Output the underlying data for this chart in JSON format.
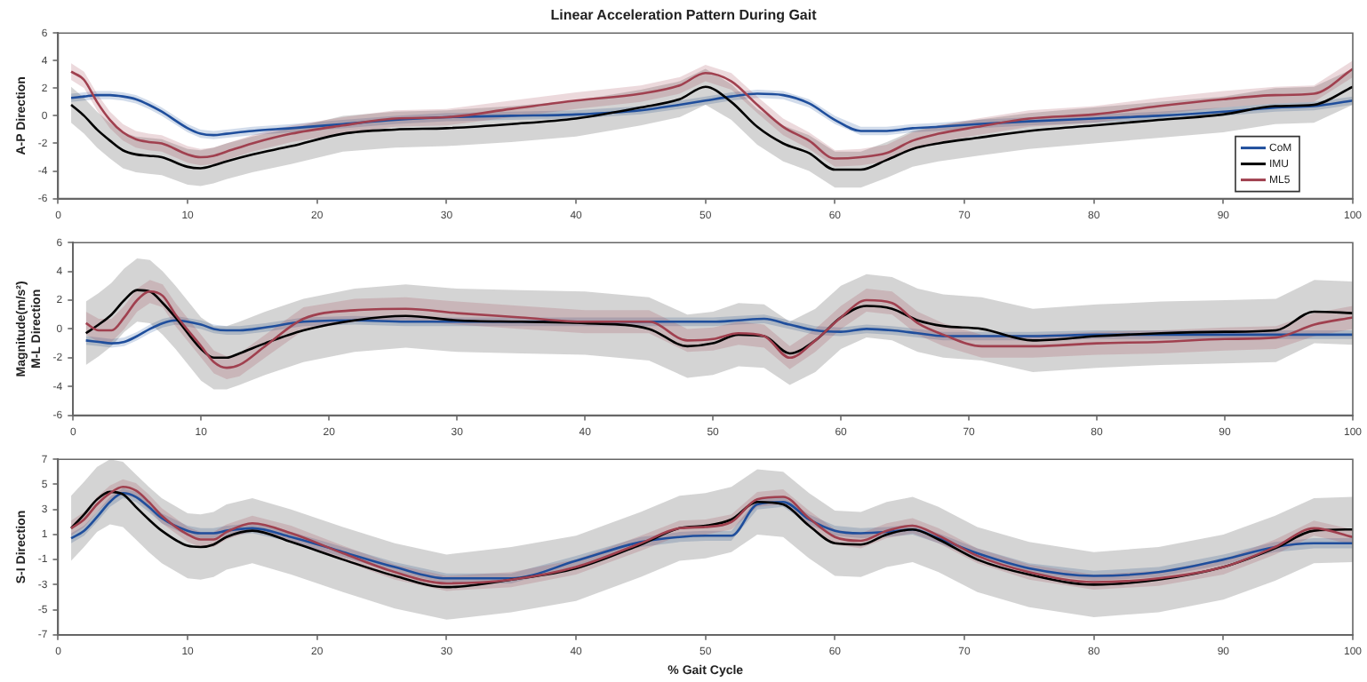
{
  "chart_data": [
    {
      "type": "line",
      "title": "Linear Acceleration Pattern During Gait",
      "ylabel": "A-P Direction",
      "x": [
        1,
        2,
        3,
        4,
        5,
        6,
        7,
        8,
        10,
        11,
        12,
        13,
        15,
        18,
        22,
        26,
        30,
        35,
        40,
        45,
        48,
        50,
        52,
        54,
        56,
        58,
        60,
        62,
        64,
        66,
        68,
        71,
        75,
        80,
        85,
        90,
        94,
        97,
        100
      ],
      "xlim": [
        0,
        100
      ],
      "xticks": [
        0,
        10,
        20,
        30,
        40,
        50,
        60,
        70,
        80,
        90,
        100
      ],
      "ylim": [
        -6,
        6
      ],
      "yticks": [
        -6,
        -4,
        -2,
        0,
        2,
        4,
        6
      ],
      "legend": "bottom right",
      "series": [
        {
          "name": "CoM",
          "color": "#1f4e9c",
          "values": [
            1.3,
            1.4,
            1.5,
            1.5,
            1.4,
            1.2,
            0.8,
            0.3,
            -0.9,
            -1.3,
            -1.4,
            -1.3,
            -1.1,
            -0.9,
            -0.6,
            -0.3,
            -0.1,
            0.0,
            0.1,
            0.4,
            0.8,
            1.1,
            1.4,
            1.6,
            1.5,
            0.9,
            -0.3,
            -1.1,
            -1.1,
            -0.9,
            -0.8,
            -0.6,
            -0.4,
            -0.2,
            0.0,
            0.3,
            0.6,
            0.7,
            1.1
          ],
          "lower": [
            1.0,
            1.1,
            1.2,
            1.2,
            1.1,
            0.9,
            0.5,
            0.0,
            -1.2,
            -1.6,
            -1.7,
            -1.6,
            -1.4,
            -1.2,
            -0.9,
            -0.6,
            -0.4,
            -0.3,
            -0.2,
            0.1,
            0.5,
            0.8,
            1.1,
            1.3,
            1.2,
            0.6,
            -0.6,
            -1.4,
            -1.4,
            -1.2,
            -1.1,
            -0.9,
            -0.7,
            -0.5,
            -0.3,
            0.0,
            0.3,
            0.4,
            0.8
          ],
          "upper": [
            1.6,
            1.7,
            1.8,
            1.8,
            1.7,
            1.5,
            1.1,
            0.6,
            -0.6,
            -1.0,
            -1.1,
            -1.0,
            -0.8,
            -0.6,
            -0.3,
            0.0,
            0.2,
            0.3,
            0.4,
            0.7,
            1.1,
            1.4,
            1.7,
            1.9,
            1.8,
            1.2,
            0.0,
            -0.8,
            -0.8,
            -0.6,
            -0.5,
            -0.3,
            -0.1,
            0.1,
            0.3,
            0.6,
            0.9,
            1.0,
            1.4
          ]
        },
        {
          "name": "IMU",
          "color": "#000000",
          "values": [
            0.8,
            0.0,
            -1.0,
            -1.8,
            -2.5,
            -2.8,
            -2.9,
            -3.0,
            -3.7,
            -3.8,
            -3.6,
            -3.3,
            -2.8,
            -2.2,
            -1.3,
            -1.0,
            -0.9,
            -0.6,
            -0.2,
            0.6,
            1.2,
            2.1,
            1.0,
            -0.8,
            -2.0,
            -2.7,
            -3.9,
            -3.9,
            -3.2,
            -2.4,
            -2.0,
            -1.6,
            -1.1,
            -0.7,
            -0.3,
            0.1,
            0.7,
            0.8,
            2.1
          ],
          "lower": [
            -0.5,
            -1.3,
            -2.3,
            -3.1,
            -3.8,
            -4.1,
            -4.2,
            -4.3,
            -5.0,
            -5.1,
            -4.9,
            -4.6,
            -4.1,
            -3.5,
            -2.6,
            -2.3,
            -2.2,
            -1.9,
            -1.5,
            -0.7,
            -0.1,
            0.8,
            -0.3,
            -2.1,
            -3.3,
            -4.0,
            -5.2,
            -5.2,
            -4.5,
            -3.7,
            -3.3,
            -2.9,
            -2.4,
            -2.0,
            -1.6,
            -1.2,
            -0.6,
            -0.5,
            0.8
          ],
          "upper": [
            2.1,
            1.3,
            0.3,
            -0.5,
            -1.2,
            -1.5,
            -1.6,
            -1.7,
            -2.4,
            -2.5,
            -2.3,
            -2.0,
            -1.5,
            -0.9,
            0.0,
            0.3,
            0.4,
            0.7,
            1.1,
            1.9,
            2.5,
            3.4,
            2.3,
            0.5,
            -0.7,
            -1.4,
            -2.6,
            -2.6,
            -1.9,
            -1.1,
            -0.7,
            -0.3,
            0.2,
            0.6,
            1.0,
            1.4,
            2.0,
            2.1,
            3.4
          ]
        },
        {
          "name": "ML5",
          "color": "#a0404f",
          "values": [
            3.2,
            2.6,
            1.0,
            -0.3,
            -1.2,
            -1.7,
            -1.9,
            -2.0,
            -2.8,
            -3.0,
            -2.9,
            -2.6,
            -2.0,
            -1.3,
            -0.7,
            -0.2,
            -0.1,
            0.5,
            1.1,
            1.6,
            2.2,
            3.1,
            2.5,
            0.8,
            -0.8,
            -1.8,
            -3.1,
            -3.0,
            -2.7,
            -1.8,
            -1.3,
            -0.8,
            -0.2,
            0.1,
            0.7,
            1.2,
            1.5,
            1.6,
            3.4
          ],
          "lower": [
            2.6,
            2.0,
            0.4,
            -0.9,
            -1.8,
            -2.3,
            -2.5,
            -2.6,
            -3.4,
            -3.6,
            -3.5,
            -3.2,
            -2.6,
            -1.9,
            -1.3,
            -0.8,
            -0.7,
            -0.1,
            0.5,
            1.0,
            1.6,
            2.5,
            1.9,
            0.2,
            -1.4,
            -2.4,
            -3.7,
            -3.6,
            -3.3,
            -2.4,
            -1.9,
            -1.4,
            -0.8,
            -0.5,
            0.1,
            0.6,
            0.9,
            1.0,
            2.8
          ],
          "upper": [
            3.8,
            3.2,
            1.6,
            0.3,
            -0.6,
            -1.1,
            -1.3,
            -1.4,
            -2.2,
            -2.4,
            -2.3,
            -2.0,
            -1.4,
            -0.7,
            -0.1,
            0.4,
            0.5,
            1.1,
            1.7,
            2.2,
            2.8,
            3.7,
            3.1,
            1.4,
            -0.2,
            -1.2,
            -2.5,
            -2.4,
            -2.1,
            -1.2,
            -0.7,
            -0.2,
            0.4,
            0.7,
            1.3,
            1.8,
            2.1,
            2.2,
            4.0
          ]
        }
      ]
    },
    {
      "type": "line",
      "ylabel": "Magnitude(m/s²)\nM-L Direction",
      "x": [
        1,
        2,
        3,
        4,
        5,
        6,
        7,
        8,
        10,
        11,
        12,
        13,
        15,
        18,
        22,
        26,
        30,
        35,
        40,
        45,
        48,
        50,
        52,
        54,
        56,
        58,
        60,
        62,
        64,
        66,
        68,
        71,
        75,
        80,
        85,
        90,
        94,
        97,
        100
      ],
      "xlim": [
        0,
        100
      ],
      "xticks": [
        0,
        10,
        20,
        30,
        40,
        50,
        60,
        70,
        80,
        90,
        100
      ],
      "ylim": [
        -6,
        6
      ],
      "yticks": [
        -6,
        -4,
        -2,
        0,
        2,
        4,
        6
      ],
      "series": [
        {
          "color": "#1f4e9c",
          "values": [
            -0.8,
            -0.9,
            -1.0,
            -0.9,
            -0.5,
            0.0,
            0.4,
            0.6,
            0.3,
            0.0,
            -0.1,
            -0.1,
            0.1,
            0.5,
            0.6,
            0.5,
            0.5,
            0.5,
            0.5,
            0.5,
            0.5,
            0.5,
            0.6,
            0.7,
            0.3,
            -0.1,
            -0.2,
            0.0,
            -0.1,
            -0.3,
            -0.5,
            -0.5,
            -0.5,
            -0.4,
            -0.4,
            -0.4,
            -0.4,
            -0.4,
            -0.4
          ],
          "lower": [
            -1.1,
            -1.2,
            -1.3,
            -1.2,
            -0.8,
            -0.3,
            0.1,
            0.3,
            0.0,
            -0.3,
            -0.4,
            -0.4,
            -0.2,
            0.2,
            0.3,
            0.2,
            0.2,
            0.2,
            0.2,
            0.2,
            0.2,
            0.2,
            0.3,
            0.4,
            0.0,
            -0.4,
            -0.5,
            -0.3,
            -0.4,
            -0.6,
            -0.8,
            -0.8,
            -0.8,
            -0.7,
            -0.7,
            -0.7,
            -0.7,
            -0.7,
            -0.7
          ],
          "upper": [
            -0.5,
            -0.6,
            -0.7,
            -0.6,
            -0.2,
            0.3,
            0.7,
            0.9,
            0.6,
            0.3,
            0.2,
            0.2,
            0.4,
            0.8,
            0.9,
            0.8,
            0.8,
            0.8,
            0.8,
            0.8,
            0.8,
            0.8,
            0.9,
            1.0,
            0.6,
            0.2,
            0.1,
            0.3,
            0.2,
            0.0,
            -0.2,
            -0.2,
            -0.2,
            -0.1,
            -0.1,
            -0.1,
            -0.1,
            -0.1,
            -0.1
          ]
        },
        {
          "color": "#000000",
          "values": [
            -0.3,
            0.3,
            1.0,
            2.0,
            2.7,
            2.6,
            1.8,
            0.8,
            -1.4,
            -2.0,
            -2.0,
            -1.7,
            -1.0,
            -0.1,
            0.6,
            0.9,
            0.6,
            0.5,
            0.4,
            0.0,
            -1.2,
            -1.0,
            -0.4,
            -0.5,
            -1.7,
            -0.8,
            0.8,
            1.6,
            1.4,
            0.6,
            0.2,
            0.0,
            -0.8,
            -0.5,
            -0.3,
            -0.2,
            -0.1,
            1.2,
            1.1
          ],
          "lower": [
            -2.5,
            -1.9,
            -1.2,
            -0.2,
            0.5,
            0.4,
            -0.4,
            -1.4,
            -3.6,
            -4.2,
            -4.2,
            -3.9,
            -3.2,
            -2.3,
            -1.6,
            -1.3,
            -1.6,
            -1.7,
            -1.8,
            -2.2,
            -3.4,
            -3.2,
            -2.6,
            -2.7,
            -3.9,
            -3.0,
            -1.4,
            -0.6,
            -0.8,
            -1.6,
            -2.0,
            -2.2,
            -3.0,
            -2.7,
            -2.5,
            -2.4,
            -2.3,
            -1.0,
            -1.1
          ],
          "upper": [
            1.9,
            2.5,
            3.2,
            4.2,
            4.9,
            4.8,
            4.0,
            3.0,
            0.8,
            0.2,
            0.2,
            0.5,
            1.2,
            2.1,
            2.8,
            3.1,
            2.8,
            2.7,
            2.6,
            2.2,
            1.0,
            1.2,
            1.8,
            1.7,
            0.5,
            1.4,
            3.0,
            3.8,
            3.6,
            2.8,
            2.4,
            2.2,
            1.4,
            1.7,
            1.9,
            2.0,
            2.1,
            3.4,
            3.3
          ]
        },
        {
          "color": "#a0404f",
          "values": [
            0.4,
            -0.1,
            -0.1,
            0.8,
            2.0,
            2.6,
            2.3,
            1.0,
            -1.2,
            -2.3,
            -2.7,
            -2.5,
            -1.2,
            0.7,
            1.3,
            1.4,
            1.1,
            0.8,
            0.5,
            0.5,
            -0.8,
            -0.7,
            -0.3,
            -0.5,
            -2.0,
            -0.8,
            0.8,
            2.0,
            1.8,
            0.4,
            -0.4,
            -1.2,
            -1.2,
            -1.0,
            -0.9,
            -0.7,
            -0.6,
            0.3,
            0.8
          ],
          "lower": [
            -0.4,
            -0.9,
            -0.9,
            0.0,
            1.2,
            1.8,
            1.5,
            0.2,
            -2.0,
            -3.1,
            -3.5,
            -3.3,
            -2.0,
            -0.1,
            0.5,
            0.6,
            0.3,
            0.0,
            -0.3,
            -0.3,
            -1.6,
            -1.5,
            -1.1,
            -1.3,
            -2.8,
            -1.6,
            0.0,
            1.2,
            1.0,
            -0.4,
            -1.2,
            -2.0,
            -2.0,
            -1.8,
            -1.7,
            -1.5,
            -1.4,
            -0.5,
            0.0
          ],
          "upper": [
            1.2,
            0.7,
            0.7,
            1.6,
            2.8,
            3.4,
            3.1,
            1.8,
            -0.4,
            -1.5,
            -1.9,
            -1.7,
            -0.4,
            1.5,
            2.1,
            2.2,
            1.9,
            1.6,
            1.3,
            1.3,
            0.0,
            0.1,
            0.5,
            0.3,
            -1.2,
            0.0,
            1.6,
            2.8,
            2.6,
            1.2,
            0.4,
            -0.4,
            -0.4,
            -0.2,
            -0.1,
            0.1,
            0.2,
            1.1,
            1.6
          ]
        }
      ]
    },
    {
      "type": "line",
      "ylabel": "S-I Direction",
      "xlabel": "% Gait Cycle",
      "x": [
        1,
        2,
        3,
        4,
        5,
        6,
        7,
        8,
        10,
        11,
        12,
        13,
        15,
        18,
        22,
        26,
        30,
        35,
        40,
        45,
        48,
        50,
        52,
        54,
        56,
        58,
        60,
        62,
        64,
        66,
        68,
        71,
        75,
        80,
        85,
        90,
        94,
        97,
        100
      ],
      "xlim": [
        0,
        100
      ],
      "xticks": [
        0,
        10,
        20,
        30,
        40,
        50,
        60,
        70,
        80,
        90,
        100
      ],
      "ylim": [
        -7,
        7
      ],
      "yticks": [
        -7,
        -5,
        -3,
        -1,
        1,
        3,
        5,
        7
      ],
      "series": [
        {
          "color": "#1f4e9c",
          "values": [
            0.7,
            1.3,
            2.4,
            3.6,
            4.3,
            4.0,
            3.2,
            2.3,
            1.3,
            1.1,
            1.1,
            1.3,
            1.5,
            0.8,
            -0.4,
            -1.6,
            -2.5,
            -2.5,
            -1.1,
            0.4,
            0.8,
            0.9,
            0.9,
            3.4,
            3.6,
            2.2,
            1.3,
            1.1,
            1.2,
            1.4,
            0.7,
            -0.5,
            -1.7,
            -2.3,
            -2.0,
            -1.0,
            0.0,
            0.3,
            0.3
          ],
          "lower": [
            0.3,
            0.9,
            2.0,
            3.2,
            3.9,
            3.6,
            2.8,
            1.9,
            0.9,
            0.7,
            0.7,
            0.9,
            1.1,
            0.4,
            -0.8,
            -2.0,
            -2.9,
            -2.9,
            -1.5,
            0.0,
            0.4,
            0.5,
            0.5,
            3.0,
            3.2,
            1.8,
            0.9,
            0.7,
            0.8,
            1.0,
            0.3,
            -0.9,
            -2.1,
            -2.7,
            -2.4,
            -1.4,
            -0.4,
            -0.1,
            -0.1
          ],
          "upper": [
            1.1,
            1.7,
            2.8,
            4.0,
            4.7,
            4.4,
            3.6,
            2.7,
            1.7,
            1.5,
            1.5,
            1.7,
            1.9,
            1.2,
            0.0,
            -1.2,
            -2.1,
            -2.1,
            -0.7,
            0.8,
            1.2,
            1.3,
            1.3,
            3.8,
            4.0,
            2.6,
            1.7,
            1.5,
            1.6,
            1.8,
            1.1,
            -0.1,
            -1.3,
            -1.9,
            -1.6,
            -0.6,
            0.4,
            0.7,
            0.7
          ]
        },
        {
          "color": "#000000",
          "values": [
            1.5,
            2.6,
            3.8,
            4.4,
            4.2,
            3.2,
            2.2,
            1.3,
            0.1,
            0.0,
            0.2,
            0.8,
            1.3,
            0.4,
            -1.0,
            -2.3,
            -3.2,
            -2.6,
            -1.7,
            0.2,
            1.5,
            1.7,
            2.2,
            3.6,
            3.4,
            1.7,
            0.3,
            0.2,
            1.0,
            1.4,
            0.6,
            -1.0,
            -2.2,
            -3.0,
            -2.6,
            -1.6,
            -0.1,
            1.3,
            1.4
          ],
          "lower": [
            -1.1,
            0.0,
            1.2,
            1.8,
            1.6,
            0.6,
            -0.4,
            -1.3,
            -2.5,
            -2.6,
            -2.4,
            -1.8,
            -1.3,
            -2.2,
            -3.6,
            -4.9,
            -5.8,
            -5.2,
            -4.3,
            -2.4,
            -1.1,
            -0.9,
            -0.4,
            1.0,
            0.8,
            -0.9,
            -2.3,
            -2.4,
            -1.6,
            -1.2,
            -2.0,
            -3.6,
            -4.8,
            -5.6,
            -5.2,
            -4.2,
            -2.7,
            -1.3,
            -1.2
          ],
          "upper": [
            4.1,
            5.2,
            6.4,
            7.0,
            6.8,
            5.8,
            4.8,
            3.9,
            2.7,
            2.6,
            2.8,
            3.4,
            3.9,
            3.0,
            1.6,
            0.3,
            -0.6,
            0.0,
            0.9,
            2.8,
            4.1,
            4.3,
            4.8,
            6.2,
            6.0,
            4.3,
            2.9,
            2.8,
            3.6,
            4.0,
            3.2,
            1.6,
            0.4,
            -0.4,
            0.0,
            1.0,
            2.5,
            3.9,
            4.0
          ]
        },
        {
          "color": "#a0404f",
          "values": [
            1.5,
            2.2,
            3.4,
            4.3,
            4.8,
            4.5,
            3.6,
            2.5,
            1.0,
            0.6,
            0.6,
            1.2,
            1.9,
            1.1,
            -0.5,
            -2.0,
            -2.9,
            -2.6,
            -1.6,
            0.3,
            1.5,
            1.6,
            2.0,
            3.8,
            4.0,
            2.3,
            0.8,
            0.5,
            1.3,
            1.7,
            0.9,
            -0.7,
            -2.0,
            -2.8,
            -2.5,
            -1.6,
            0.0,
            1.5,
            0.8
          ],
          "lower": [
            0.9,
            1.6,
            2.8,
            3.7,
            4.2,
            3.9,
            3.0,
            1.9,
            0.4,
            0.0,
            0.0,
            0.6,
            1.3,
            0.5,
            -1.1,
            -2.6,
            -3.5,
            -3.2,
            -2.2,
            -0.3,
            0.9,
            1.0,
            1.4,
            3.2,
            3.4,
            1.7,
            0.2,
            -0.1,
            0.7,
            1.1,
            0.3,
            -1.3,
            -2.6,
            -3.4,
            -3.1,
            -2.2,
            -0.6,
            0.9,
            0.2
          ],
          "upper": [
            2.1,
            2.8,
            4.0,
            4.9,
            5.4,
            5.1,
            4.2,
            3.1,
            1.6,
            1.2,
            1.2,
            1.8,
            2.5,
            1.7,
            0.1,
            -1.4,
            -2.3,
            -2.0,
            -1.0,
            0.9,
            2.1,
            2.2,
            2.6,
            4.4,
            4.6,
            2.9,
            1.4,
            1.1,
            1.9,
            2.3,
            1.5,
            -0.1,
            -1.4,
            -2.2,
            -1.9,
            -1.0,
            0.6,
            2.1,
            1.4
          ]
        }
      ]
    }
  ]
}
